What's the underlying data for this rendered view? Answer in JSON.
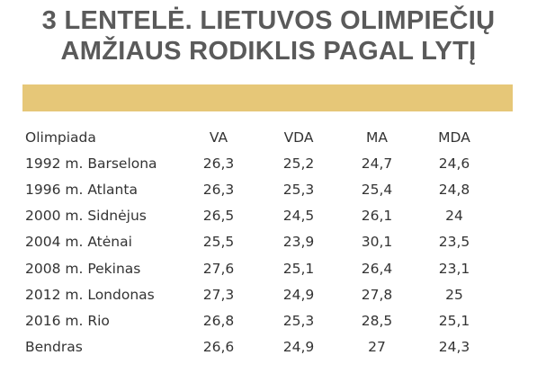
{
  "title": {
    "line1": "3 LENTELĖ. LIETUVOS OLIMPIEČIŲ",
    "line2": "AMŽIAUS RODIKLIS PAGAL LYTĮ"
  },
  "accent_color": "#e6c778",
  "table": {
    "headers": [
      "Olimpiada",
      "VA",
      "VDA",
      "MA",
      "MDA"
    ],
    "rows": [
      [
        "1992 m. Barselona",
        "26,3",
        "25,2",
        "24,7",
        "24,6"
      ],
      [
        "1996 m. Atlanta",
        "26,3",
        "25,3",
        "25,4",
        "24,8"
      ],
      [
        "2000 m. Sidnėjus",
        "26,5",
        "24,5",
        "26,1",
        "24"
      ],
      [
        "2004 m. Atėnai",
        "25,5",
        "23,9",
        "30,1",
        "23,5"
      ],
      [
        "2008 m. Pekinas",
        "27,6",
        "25,1",
        "26,4",
        "23,1"
      ],
      [
        "2012 m. Londonas",
        "27,3",
        "24,9",
        "27,8",
        "25"
      ],
      [
        "2016 m. Rio",
        "26,8",
        "25,3",
        "28,5",
        "25,1"
      ],
      [
        "Bendras",
        "26,6",
        "24,9",
        "27",
        "24,3"
      ]
    ]
  }
}
